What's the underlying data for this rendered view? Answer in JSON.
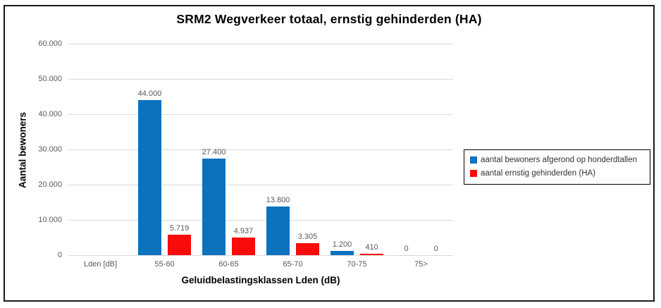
{
  "chart_data": {
    "type": "bar",
    "title": "SRM2 Wegverkeer totaal, ernstig gehinderden (HA)",
    "xlabel": "Geluidbelastingsklassen Lden (dB)",
    "ylabel": "Aantal bewoners",
    "ylim": [
      0,
      60000
    ],
    "ytick_step": 10000,
    "ytick_labels": [
      "0",
      "10.000",
      "20.000",
      "30.000",
      "40.000",
      "50.000",
      "60.000"
    ],
    "categories": [
      "Lden [dB]",
      "55-60",
      "60-65",
      "65-70",
      "70-75",
      "75>"
    ],
    "grid": true,
    "legend_position": "right",
    "series": [
      {
        "name": "aantal bewoners afgerond op honderdtallen",
        "color": "#0b72be",
        "values": [
          null,
          44000,
          27400,
          13800,
          1200,
          0
        ],
        "labels": [
          null,
          "44.000",
          "27.400",
          "13.800",
          "1.200",
          "0"
        ]
      },
      {
        "name": "aantal ernstig gehinderden (HA)",
        "color": "#f90b0b",
        "values": [
          null,
          5719,
          4937,
          3305,
          410,
          0
        ],
        "labels": [
          null,
          "5.719",
          "4.937",
          "3.305",
          "410",
          "0"
        ]
      }
    ],
    "colors": {
      "gridline": "#d9d9d9",
      "tick_text": "#595959",
      "data_label_text": "#595959",
      "border": "#1a1a1a"
    }
  }
}
